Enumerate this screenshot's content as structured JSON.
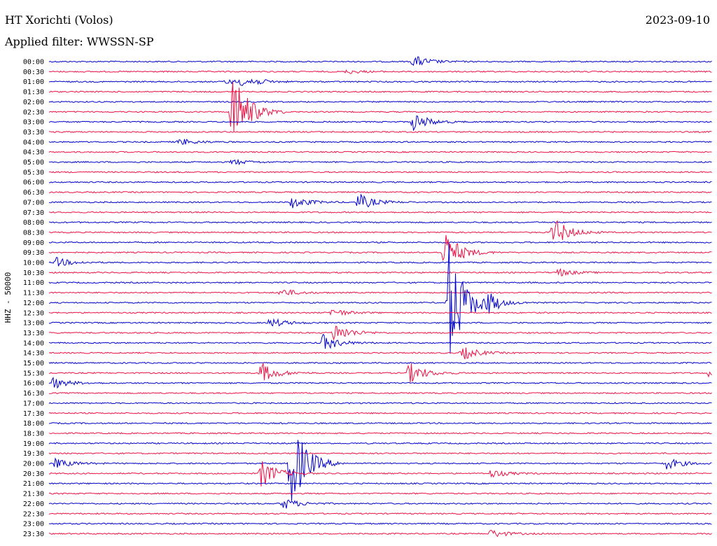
{
  "header": {
    "station": "HT Xorichti (Volos)",
    "date": "2023-09-10",
    "filter": "Applied filter: WWSSN-SP"
  },
  "chart_data": {
    "type": "line",
    "subtype": "helicorder",
    "ylabel": "HHZ - 50000",
    "row_labels": [
      "00:00",
      "00:30",
      "01:00",
      "01:30",
      "02:00",
      "02:30",
      "03:00",
      "03:30",
      "04:00",
      "04:30",
      "05:00",
      "05:30",
      "06:00",
      "06:30",
      "07:00",
      "07:30",
      "08:00",
      "08:30",
      "09:00",
      "09:30",
      "10:00",
      "10:30",
      "11:00",
      "11:30",
      "12:00",
      "12:30",
      "13:00",
      "13:30",
      "14:00",
      "14:30",
      "15:00",
      "15:30",
      "16:00",
      "16:30",
      "17:00",
      "17:30",
      "18:00",
      "18:30",
      "19:00",
      "19:30",
      "20:00",
      "20:30",
      "21:00",
      "21:30",
      "22:00",
      "22:30",
      "23:00",
      "23:30"
    ],
    "row_minutes": 30,
    "trace_colors": [
      "#0000cc",
      "#ee1144"
    ],
    "grid": false,
    "events": [
      {
        "row": 0,
        "minute": 16.5,
        "amplitude": 9
      },
      {
        "row": 1,
        "minute": 13.5,
        "amplitude": 3
      },
      {
        "row": 2,
        "minute": 8.0,
        "amplitude": 3
      },
      {
        "row": 2,
        "minute": 8.6,
        "amplitude": 5
      },
      {
        "row": 2,
        "minute": 9.0,
        "amplitude": 4
      },
      {
        "row": 5,
        "minute": 8.3,
        "amplitude": 60
      },
      {
        "row": 6,
        "minute": 16.5,
        "amplitude": 13
      },
      {
        "row": 8,
        "minute": 5.9,
        "amplitude": 5
      },
      {
        "row": 10,
        "minute": 8.3,
        "amplitude": 4
      },
      {
        "row": 14,
        "minute": 11.0,
        "amplitude": 9
      },
      {
        "row": 14,
        "minute": 14.0,
        "amplitude": 12
      },
      {
        "row": 17,
        "minute": 22.8,
        "amplitude": 22
      },
      {
        "row": 19,
        "minute": 17.9,
        "amplitude": 30
      },
      {
        "row": 20,
        "minute": 0.3,
        "amplitude": 7
      },
      {
        "row": 21,
        "minute": 23.0,
        "amplitude": 6
      },
      {
        "row": 23,
        "minute": 10.5,
        "amplitude": 6
      },
      {
        "row": 24,
        "minute": 18.1,
        "amplitude": 90
      },
      {
        "row": 24,
        "minute": 19.8,
        "amplitude": 12
      },
      {
        "row": 25,
        "minute": 12.8,
        "amplitude": 6
      },
      {
        "row": 26,
        "minute": 10.0,
        "amplitude": 7
      },
      {
        "row": 27,
        "minute": 12.9,
        "amplitude": 14
      },
      {
        "row": 28,
        "minute": 12.4,
        "amplitude": 12
      },
      {
        "row": 29,
        "minute": 18.7,
        "amplitude": 10
      },
      {
        "row": 31,
        "minute": 9.6,
        "amplitude": 15
      },
      {
        "row": 31,
        "minute": 16.3,
        "amplitude": 15
      },
      {
        "row": 31,
        "minute": 29.9,
        "amplitude": 8
      },
      {
        "row": 32,
        "minute": 0.2,
        "amplitude": 8
      },
      {
        "row": 40,
        "minute": 10.9,
        "amplitude": 70
      },
      {
        "row": 40,
        "minute": 0.3,
        "amplitude": 7
      },
      {
        "row": 40,
        "minute": 27.9,
        "amplitude": 9
      },
      {
        "row": 41,
        "minute": 9.6,
        "amplitude": 20
      },
      {
        "row": 41,
        "minute": 20.0,
        "amplitude": 6
      },
      {
        "row": 44,
        "minute": 10.6,
        "amplitude": 8
      },
      {
        "row": 47,
        "minute": 20.0,
        "amplitude": 6
      }
    ]
  }
}
